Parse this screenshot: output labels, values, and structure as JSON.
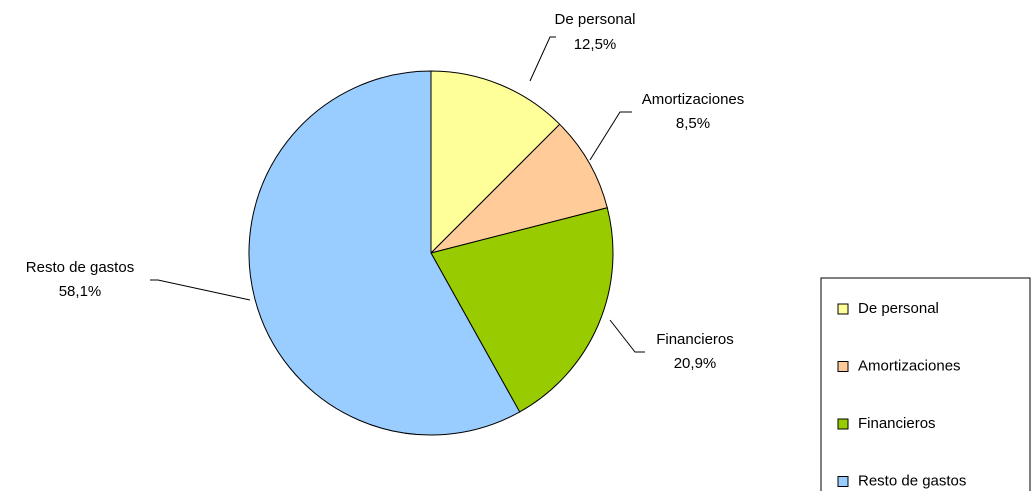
{
  "chart_data": {
    "type": "pie",
    "categories": [
      "De personal",
      "Amortizaciones",
      "Financieros",
      "Resto de gastos"
    ],
    "values": [
      12.5,
      8.5,
      20.9,
      58.1
    ],
    "value_labels": [
      "12,5%",
      "8,5%",
      "20,9%",
      "58,1%"
    ],
    "colors": [
      "#ffff99",
      "#ffcc99",
      "#99cc00",
      "#99ccff"
    ],
    "legend": "right"
  }
}
